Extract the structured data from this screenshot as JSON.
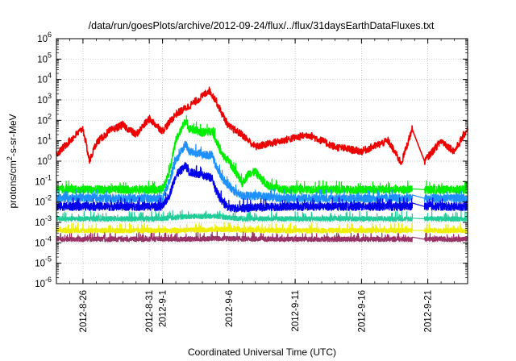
{
  "chart_data": {
    "type": "line",
    "title": "/data/run/goesPlots/archive/2012-09-24/flux/../flux/31daysEarthDataFluxes.txt",
    "xlabel": "Coordinated Universal Time (UTC)",
    "ylabel": "protons/cm²-s-sr-MeV",
    "x_range": [
      "2012-08-24",
      "2012-09-24"
    ],
    "x_ticks": [
      {
        "date": "2012-08-26",
        "label": "2012-8-26"
      },
      {
        "date": "2012-08-31",
        "label": "2012-8-31"
      },
      {
        "date": "2012-09-01",
        "label": "2012-9-1"
      },
      {
        "date": "2012-09-06",
        "label": "2012-9-6"
      },
      {
        "date": "2012-09-11",
        "label": "2012-9-11"
      },
      {
        "date": "2012-09-16",
        "label": "2012-9-16"
      },
      {
        "date": "2012-09-21",
        "label": "2012-9-21"
      }
    ],
    "y_scale": "log",
    "ylim": [
      1e-06,
      1000000.0
    ],
    "y_ticks": [
      {
        "base": "10",
        "exp": "-6"
      },
      {
        "base": "10",
        "exp": "-5"
      },
      {
        "base": "10",
        "exp": "-4"
      },
      {
        "base": "10",
        "exp": "-3"
      },
      {
        "base": "10",
        "exp": "-2"
      },
      {
        "base": "10",
        "exp": "-1"
      },
      {
        "base": "10",
        "exp": "0"
      },
      {
        "base": "10",
        "exp": "1"
      },
      {
        "base": "10",
        "exp": "2"
      },
      {
        "base": "10",
        "exp": "3"
      },
      {
        "base": "10",
        "exp": "4"
      },
      {
        "base": "10",
        "exp": "5"
      },
      {
        "base": "10",
        "exp": "6"
      }
    ],
    "grid": true,
    "legend": "none",
    "data_gap": [
      "2012-09-19T20:00",
      "2012-09-20T18:00"
    ],
    "series": [
      {
        "color": "#993366",
        "x": [
          "2012-08-24",
          "2012-09-02",
          "2012-09-05",
          "2012-09-10",
          "2012-09-19",
          "2012-09-21",
          "2012-09-24"
        ],
        "y": [
          0.00015,
          0.00015,
          0.00016,
          0.00015,
          0.00015,
          0.00015,
          0.00015
        ]
      },
      {
        "color": "#eeee00",
        "x": [
          "2012-08-24",
          "2012-09-02",
          "2012-09-05",
          "2012-09-10",
          "2012-09-19",
          "2012-09-21",
          "2012-09-24"
        ],
        "y": [
          0.0004,
          0.0004,
          0.00045,
          0.0004,
          0.0004,
          0.0004,
          0.0004
        ]
      },
      {
        "color": "#22cc99",
        "x": [
          "2012-08-24",
          "2012-09-01",
          "2012-09-03",
          "2012-09-05",
          "2012-09-07",
          "2012-09-12",
          "2012-09-19",
          "2012-09-21",
          "2012-09-24"
        ],
        "y": [
          0.0015,
          0.0015,
          0.002,
          0.002,
          0.0015,
          0.0015,
          0.0015,
          0.0015,
          0.0015
        ]
      },
      {
        "color": "#00ee00",
        "x": [
          "2012-08-24",
          "2012-09-01",
          "2012-09-01T12:00",
          "2012-09-02",
          "2012-09-02T18:00",
          "2012-09-03",
          "2012-09-04",
          "2012-09-04T18:00",
          "2012-09-05",
          "2012-09-05T12:00",
          "2012-09-06",
          "2012-09-06T12:00",
          "2012-09-07",
          "2012-09-07T12:00",
          "2012-09-08",
          "2012-09-08T12:00",
          "2012-09-09",
          "2012-09-10",
          "2012-09-19",
          "2012-09-21",
          "2012-09-24"
        ],
        "y": [
          0.04,
          0.04,
          0.3,
          10,
          100,
          40,
          25,
          30,
          12,
          2,
          1,
          0.3,
          0.08,
          0.25,
          0.3,
          0.12,
          0.06,
          0.04,
          0.04,
          0.04,
          0.04
        ]
      },
      {
        "color": "#1e90ff",
        "x": [
          "2012-08-24",
          "2012-09-01",
          "2012-09-01T12:00",
          "2012-09-02",
          "2012-09-02T18:00",
          "2012-09-03",
          "2012-09-04",
          "2012-09-04T18:00",
          "2012-09-05",
          "2012-09-05T12:00",
          "2012-09-06",
          "2012-09-06T12:00",
          "2012-09-07",
          "2012-09-08",
          "2012-09-10",
          "2012-09-19",
          "2012-09-21",
          "2012-09-24"
        ],
        "y": [
          0.015,
          0.015,
          0.1,
          1,
          7,
          3,
          2,
          2,
          0.6,
          0.15,
          0.06,
          0.03,
          0.02,
          0.02,
          0.015,
          0.015,
          0.015,
          0.015
        ]
      },
      {
        "color": "#0000ee",
        "x": [
          "2012-08-24",
          "2012-09-01",
          "2012-09-01T12:00",
          "2012-09-02",
          "2012-09-02T18:00",
          "2012-09-03",
          "2012-09-04",
          "2012-09-04T18:00",
          "2012-09-05",
          "2012-09-05T12:00",
          "2012-09-06",
          "2012-09-07",
          "2012-09-10",
          "2012-09-19",
          "2012-09-21",
          "2012-09-24"
        ],
        "y": [
          0.006,
          0.006,
          0.02,
          0.2,
          0.6,
          0.3,
          0.2,
          0.15,
          0.04,
          0.01,
          0.005,
          0.005,
          0.006,
          0.006,
          0.006,
          0.006
        ]
      },
      {
        "color": "#ee0000",
        "x": [
          "2012-08-24",
          "2012-08-25",
          "2012-08-26",
          "2012-08-26T12:00",
          "2012-08-27",
          "2012-08-28",
          "2012-08-29",
          "2012-08-30",
          "2012-08-31",
          "2012-09-01",
          "2012-09-02",
          "2012-09-03",
          "2012-09-04",
          "2012-09-04T12:00",
          "2012-09-05",
          "2012-09-05T12:00",
          "2012-09-06",
          "2012-09-07",
          "2012-09-08",
          "2012-09-10",
          "2012-09-12",
          "2012-09-14",
          "2012-09-16",
          "2012-09-18",
          "2012-09-19",
          "2012-09-19T20:00",
          "2012-09-20T18:00",
          "2012-09-22",
          "2012-09-23",
          "2012-09-24"
        ],
        "y": [
          2,
          10,
          40,
          1,
          8,
          30,
          60,
          20,
          120,
          30,
          200,
          500,
          1500,
          3000,
          1000,
          200,
          50,
          20,
          5,
          10,
          20,
          5,
          3,
          10,
          0.8,
          40,
          1,
          10,
          3,
          40
        ]
      }
    ]
  }
}
